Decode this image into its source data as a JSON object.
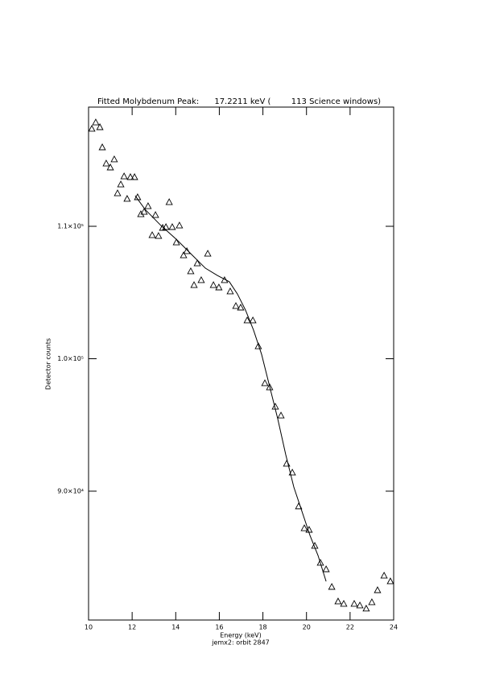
{
  "chart_data": {
    "type": "scatter",
    "title": "Fitted Molybdenum Peak:      17.2211 keV (        113 Science windows)",
    "x_label": "Energy (keV)",
    "subtitle": "jemx2: orbit 2847",
    "y_label": "Detector counts",
    "xlim": [
      10,
      24
    ],
    "xticks": [
      10,
      12,
      14,
      16,
      18,
      20,
      22,
      24
    ],
    "ylim": [
      80270,
      119000
    ],
    "yticks": [
      {
        "value": 90000,
        "label": "9.0×10⁴"
      },
      {
        "value": 100000,
        "label": "1.0×10⁵"
      },
      {
        "value": 110000,
        "label": "1.1×10⁵"
      }
    ],
    "series": [
      {
        "style": "markers",
        "color": "#000000",
        "x": [
          10.15,
          10.33,
          10.52,
          10.63,
          10.81,
          11.0,
          11.18,
          11.33,
          11.48,
          11.63,
          11.77,
          11.92,
          12.11,
          12.25,
          12.4,
          12.55,
          12.73,
          12.92,
          13.07,
          13.21,
          13.4,
          13.55,
          13.7,
          13.84,
          14.03,
          14.17,
          14.36,
          14.51,
          14.69,
          14.84,
          14.99,
          15.17,
          15.47,
          15.73,
          15.98,
          16.24,
          16.5,
          16.76,
          16.98,
          17.28,
          17.54,
          17.79,
          18.09,
          18.31,
          18.57,
          18.83,
          19.09,
          19.35,
          19.64,
          19.9,
          20.12,
          20.38,
          20.64,
          20.9,
          21.16,
          21.45,
          21.71,
          22.19,
          22.45,
          22.74,
          23.0,
          23.26,
          23.56,
          23.85
        ],
        "values": [
          117360,
          117840,
          117480,
          115960,
          114740,
          114440,
          115050,
          112490,
          113160,
          113770,
          112070,
          113710,
          113710,
          112190,
          110910,
          111090,
          111520,
          109330,
          110850,
          109270,
          109880,
          109940,
          111820,
          109940,
          108780,
          110060,
          107810,
          108120,
          106600,
          105560,
          107200,
          105930,
          107930,
          105560,
          105380,
          105930,
          105080,
          103980,
          103860,
          102890,
          102890,
          100940,
          98150,
          97840,
          96380,
          95710,
          92070,
          91400,
          88850,
          87200,
          87080,
          85870,
          84590,
          84100,
          82770,
          81670,
          81490,
          81490,
          81370,
          81130,
          81610,
          82520,
          83620,
          83190
        ]
      },
      {
        "style": "line",
        "color": "#000000",
        "x": [
          12.14,
          12.59,
          13.32,
          14.06,
          14.8,
          15.36,
          15.91,
          16.46,
          16.83,
          17.2,
          17.57,
          17.94,
          18.31,
          18.68,
          19.05,
          19.42,
          19.79,
          20.16,
          20.53,
          20.9
        ],
        "values": [
          112310,
          111280,
          110060,
          108970,
          107750,
          106840,
          106290,
          105810,
          104890,
          103680,
          102160,
          100330,
          97900,
          95470,
          92740,
          90300,
          88480,
          86660,
          85140,
          83190
        ]
      }
    ]
  }
}
